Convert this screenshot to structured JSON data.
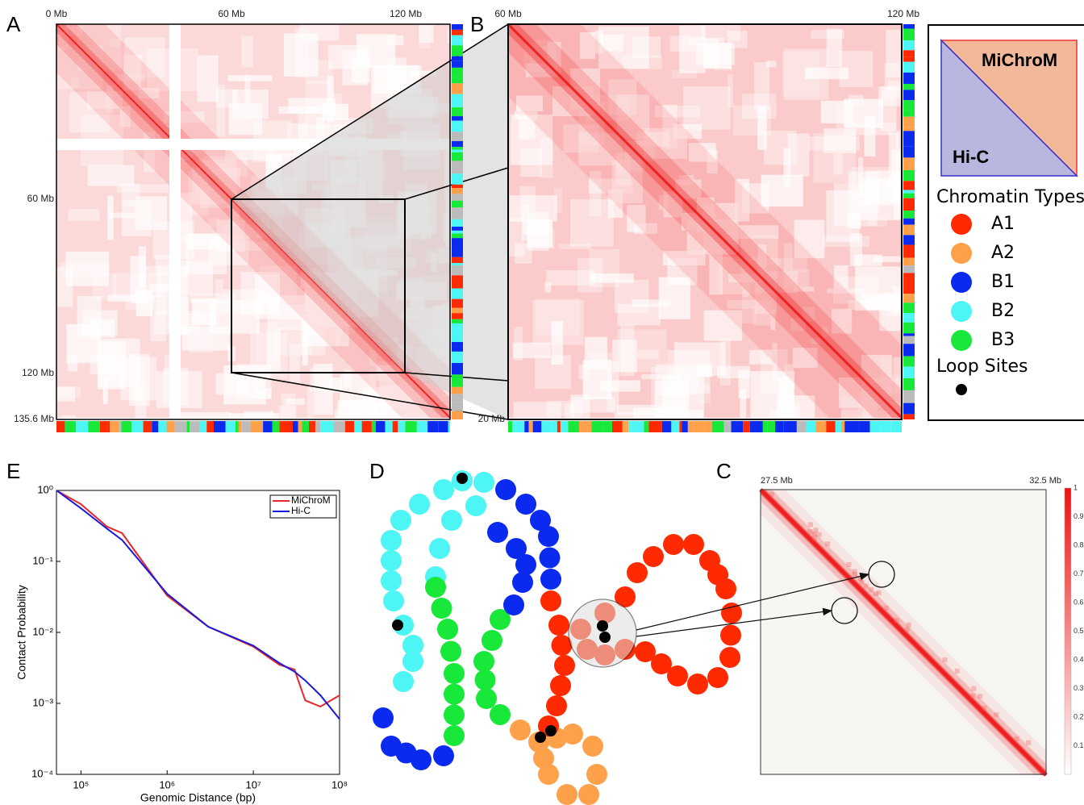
{
  "panel_labels": {
    "a": "A",
    "b": "B",
    "c": "C",
    "d": "D",
    "e": "E"
  },
  "panel_a": {
    "top_ticks": [
      "0 Mb",
      "60 Mb",
      "120 Mb"
    ],
    "left_ticks": [
      "60 Mb",
      "120 Mb",
      "135.6 Mb"
    ]
  },
  "panel_b": {
    "top_ticks": [
      "60 Mb",
      "120 Mb"
    ],
    "left_tick": "20 Mb"
  },
  "panel_c": {
    "top_ticks": [
      "27.5 Mb",
      "32.5 Mb"
    ],
    "colorbar_ticks": [
      1,
      0.9,
      0.8,
      0.7,
      0.6,
      0.5,
      0.4,
      0.3,
      0.2,
      0.1
    ]
  },
  "legend": {
    "upper": "MiChroM",
    "lower": "Hi-C",
    "types_title": "Chromatin Types",
    "types": [
      {
        "label": "A1",
        "color": "#ff2a00"
      },
      {
        "label": "A2",
        "color": "#ffa04a"
      },
      {
        "label": "B1",
        "color": "#0a2bef"
      },
      {
        "label": "B2",
        "color": "#4df5f5"
      },
      {
        "label": "B3",
        "color": "#17e83a"
      }
    ],
    "loop_title": "Loop Sites"
  },
  "chart_data": {
    "type": "line",
    "xlabel": "Genomic Distance (bp)",
    "ylabel": "Contact Probability",
    "xscale": "log",
    "yscale": "log",
    "x": [
      52000,
      100000,
      200000,
      300000,
      1000000,
      3000000,
      10000000,
      20000000,
      30000000,
      40000000,
      60000000,
      100000000
    ],
    "series": [
      {
        "name": "MiChroM",
        "color": "#e8262b",
        "values": [
          1,
          0.64,
          0.31,
          0.25,
          0.033,
          0.012,
          0.0063,
          0.0035,
          0.003,
          0.0011,
          0.0009,
          0.0013
        ]
      },
      {
        "name": "Hi-C",
        "color": "#1a1adb",
        "values": [
          1,
          0.56,
          0.29,
          0.2,
          0.035,
          0.012,
          0.0065,
          0.0037,
          0.0028,
          0.0021,
          0.0013,
          0.0006
        ]
      }
    ],
    "xlim": [
      52000,
      100000000
    ],
    "xticks": [
      {
        "value": 100000,
        "label": "10⁵"
      },
      {
        "value": 1000000,
        "label": "10⁶"
      },
      {
        "value": 10000000,
        "label": "10⁷"
      },
      {
        "value": 100000000,
        "label": "10⁸"
      }
    ],
    "ylim": [
      0.0001,
      1
    ],
    "yticks": [
      {
        "value": 0.0001,
        "label": "10⁻⁴"
      },
      {
        "value": 0.001,
        "label": "10⁻³"
      },
      {
        "value": 0.01,
        "label": "10⁻²"
      },
      {
        "value": 0.1,
        "label": "10⁻¹"
      },
      {
        "value": 1,
        "label": "10⁰"
      }
    ],
    "legend": "upper-right"
  }
}
